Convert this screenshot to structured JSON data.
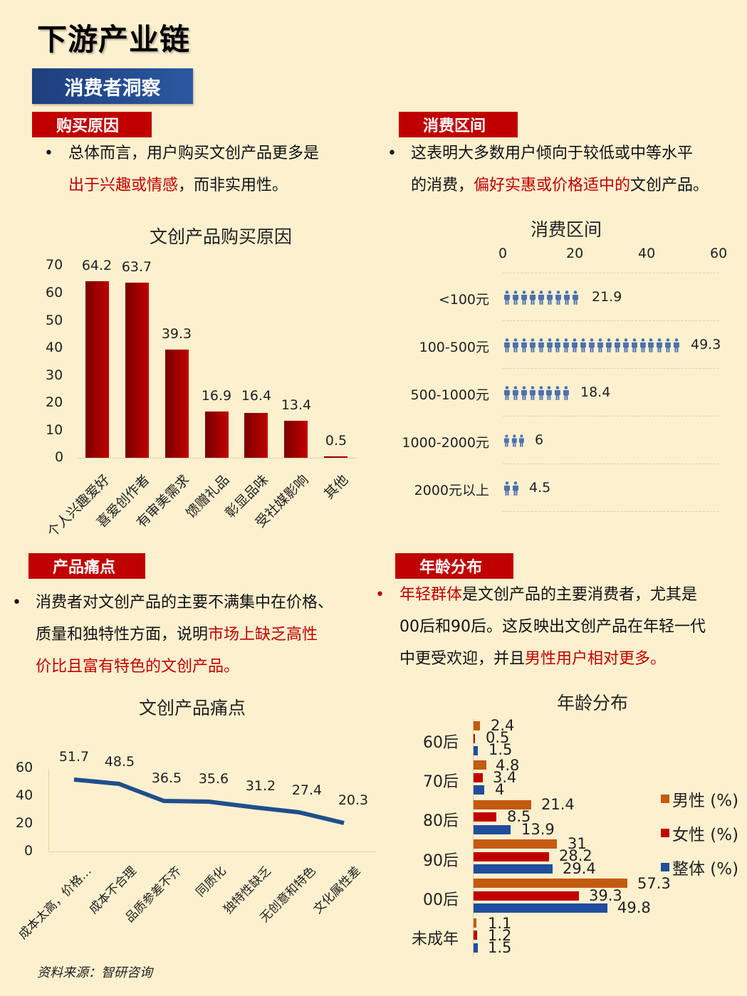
{
  "header": {
    "title": "下游产业链",
    "section_banner": "消费者洞察"
  },
  "sections": {
    "purchase_reason": {
      "tag": "购买原因",
      "bullet": "•",
      "text_part1": "总体而言，用户购买文创产品更多是",
      "text_highlight": "出于兴趣或情感",
      "text_part2": "，而非实用性。"
    },
    "spending_range": {
      "tag": "消费区间",
      "bullet": "•",
      "text_part1": "这表明大多数用户倾向于较低或中等水平",
      "text_part2": "的消费，",
      "text_highlight": "偏好实惠或价格适中的",
      "text_part3": "文创产品。"
    },
    "pain_points": {
      "tag": "产品痛点",
      "bullet": "•",
      "text_part1": "消费者对文创产品的主要不满集中在价格、",
      "text_part2": "质量和独特性方面，说明",
      "text_highlight1": "市场上缺乏高性",
      "text_highlight2": "价比且富有特色的文创产品。"
    },
    "age_distribution": {
      "tag": "年龄分布",
      "bullet": "•",
      "text_highlight1": "年轻群体",
      "text_part1": "是文创产品的主要消费者，尤其是",
      "text_part2": "00后和90后。这反映出文创产品在年轻一代",
      "text_part3": "中更受欢迎，并且",
      "text_highlight2": "男性用户相对更多。"
    }
  },
  "footer": {
    "source": "资料来源：智研咨询"
  },
  "colors": {
    "background": "#fdf0cf",
    "accent_red": "#c00000",
    "banner_blue": "#1d3f7e",
    "male": "#c55a11",
    "female": "#c00000",
    "overall": "#1f4e9c",
    "pictogram": "#4a72b0",
    "line": "#1f4e8c"
  },
  "chart_data": [
    {
      "type": "bar",
      "title": "文创产品购买原因",
      "categories": [
        "个人兴趣爱好",
        "喜爱创作者",
        "有审美需求",
        "馈赠礼品",
        "彰显品味",
        "受社媒影响",
        "其他"
      ],
      "values": [
        64.2,
        63.7,
        39.3,
        16.9,
        16.4,
        13.4,
        0.5
      ],
      "value_labels": [
        "64.2",
        "63.7",
        "39.3",
        "16.9",
        "16.4",
        "13.4",
        "0.5"
      ],
      "yticks": [
        "70",
        "60",
        "50",
        "40",
        "30",
        "20",
        "10",
        "0"
      ],
      "ylim": [
        0,
        70
      ],
      "xlabel": "",
      "ylabel": "",
      "grid": false
    },
    {
      "type": "bar",
      "orientation": "horizontal-pictogram",
      "title": "消费区间",
      "categories": [
        "<100元",
        "100-500元",
        "500-1000元",
        "1000-2000元",
        "2000元以上"
      ],
      "values": [
        21.9,
        49.3,
        18.4,
        6,
        4.5
      ],
      "value_labels": [
        "21.9",
        "49.3",
        "18.4",
        "6",
        "4.5"
      ],
      "xticks": [
        "0",
        "20",
        "40",
        "60"
      ],
      "xlim": [
        0,
        60
      ],
      "grid": true
    },
    {
      "type": "line",
      "title": "文创产品痛点",
      "categories": [
        "成本太高，价格…",
        "成本不合理",
        "品质参差不齐",
        "同质化",
        "独特性缺乏",
        "无创意和特色",
        "文化属性差"
      ],
      "values": [
        51.7,
        48.5,
        36.5,
        35.6,
        31.2,
        27.4,
        20.3
      ],
      "value_labels": [
        "51.7",
        "48.5",
        "36.5",
        "35.6",
        "31.2",
        "27.4",
        "20.3"
      ],
      "yticks": [
        "60",
        "40",
        "20",
        "0"
      ],
      "ylim": [
        0,
        60
      ],
      "grid": false
    },
    {
      "type": "bar",
      "orientation": "horizontal",
      "title": "年龄分布",
      "categories": [
        "60后",
        "70后",
        "80后",
        "90后",
        "00后",
        "未成年"
      ],
      "series": [
        {
          "name": "男性 (%)",
          "values": [
            2.4,
            4.8,
            21.4,
            31,
            57.3,
            1.1
          ],
          "labels": [
            "2.4",
            "4.8",
            "21.4",
            "31",
            "57.3",
            "1.1"
          ]
        },
        {
          "name": "女性 (%)",
          "values": [
            0.5,
            3.4,
            8.5,
            28.2,
            39.3,
            1.2
          ],
          "labels": [
            "0.5",
            "3.4",
            "8.5",
            "28.2",
            "39.3",
            "1.2"
          ]
        },
        {
          "name": "整体 (%)",
          "values": [
            1.5,
            4,
            13.9,
            29.4,
            49.8,
            1.5
          ],
          "labels": [
            "1.5",
            "4",
            "13.9",
            "29.4",
            "49.8",
            "1.5"
          ]
        }
      ],
      "legend_position": "right",
      "grid": false
    }
  ]
}
